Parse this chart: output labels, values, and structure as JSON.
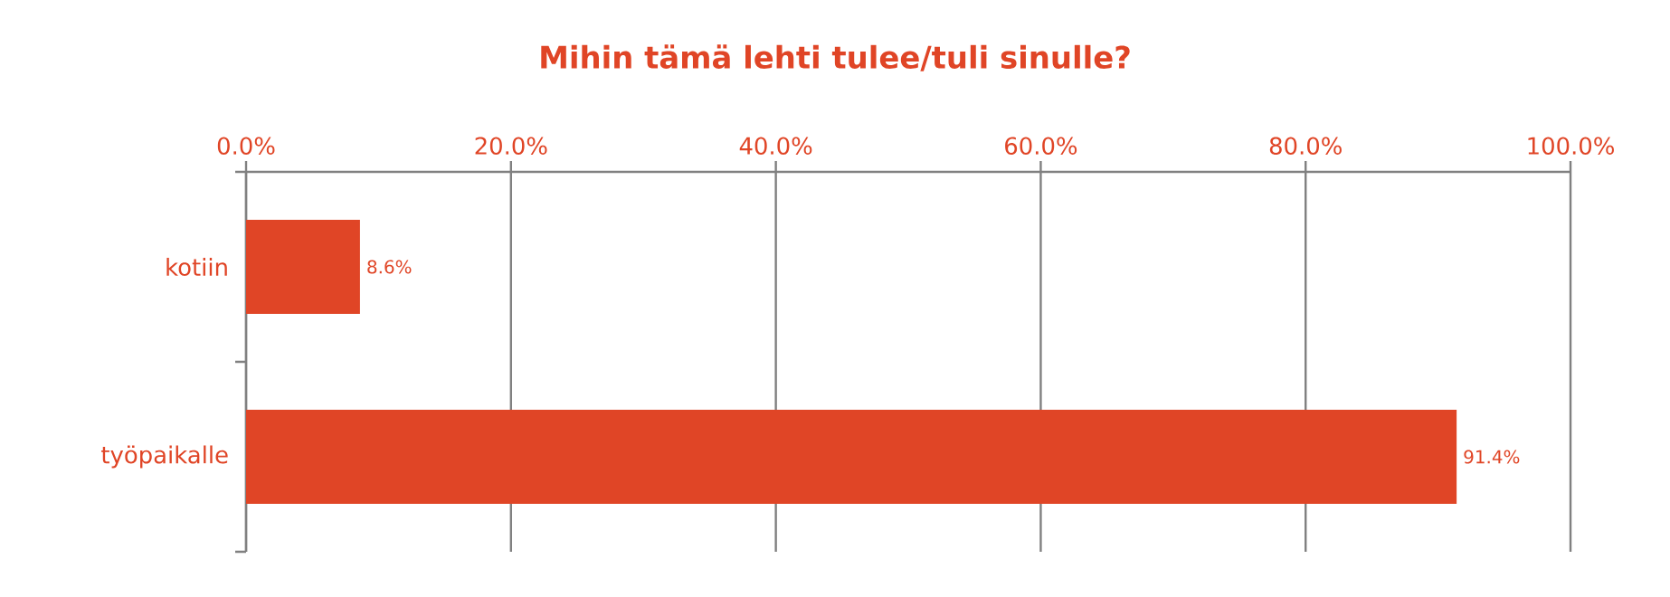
{
  "chart_data": {
    "type": "bar",
    "orientation": "horizontal",
    "title": "Mihin tämä lehti tulee/tuli sinulle?",
    "categories": [
      "kotiin",
      "työpaikalle"
    ],
    "values": [
      8.6,
      91.4
    ],
    "value_labels": [
      "8.6%",
      "91.4%"
    ],
    "color": "#e04526",
    "xlim": [
      0,
      100
    ],
    "xticks": [
      {
        "value": 0,
        "label": "0.0%"
      },
      {
        "value": 20,
        "label": "20.0%"
      },
      {
        "value": 40,
        "label": "40.0%"
      },
      {
        "value": 60,
        "label": "60.0%"
      },
      {
        "value": 80,
        "label": "80.0%"
      },
      {
        "value": 100,
        "label": "100.0%"
      }
    ],
    "grid": "x"
  }
}
